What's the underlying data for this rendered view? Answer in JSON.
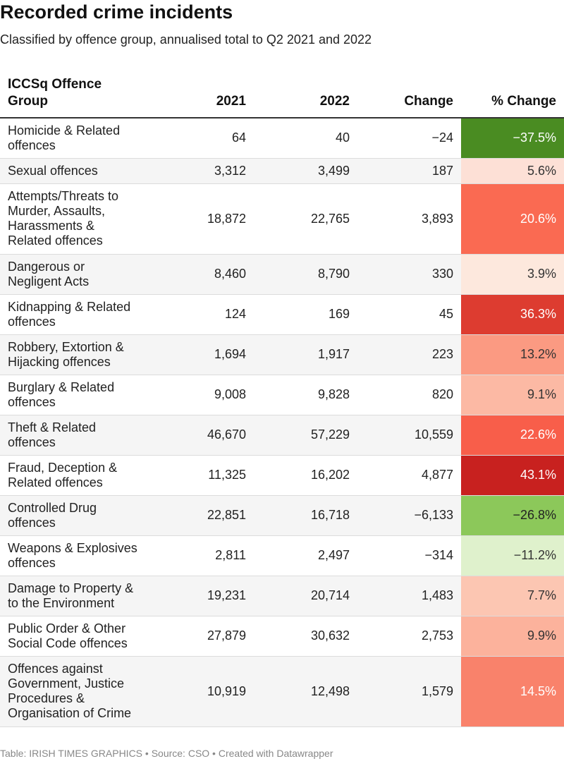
{
  "chart_data": {
    "type": "table",
    "title": "Recorded crime incidents",
    "subtitle": "Classified by offence group, annualised total to Q2 2021 and 2022",
    "columns": [
      "ICCSq Offence Group",
      "2021",
      "2022",
      "Change",
      "% Change"
    ],
    "rows": [
      {
        "group": "Homicide & Related offences",
        "y2021": "64",
        "y2022": "40",
        "change": "−24",
        "pct": "−37.5%",
        "pct_value": -37.5,
        "color": "#4a8c22",
        "text_color": "#ffffff",
        "row_height": 57
      },
      {
        "group": "Sexual offences",
        "y2021": "3,312",
        "y2022": "3,499",
        "change": "187",
        "pct": "5.6%",
        "pct_value": 5.6,
        "color": "#fde0d6",
        "text_color": "#333333",
        "row_height": 36
      },
      {
        "group": "Attempts/Threats to Murder, Assaults, Harassments & Related offences",
        "y2021": "18,872",
        "y2022": "22,765",
        "change": "3,893",
        "pct": "20.6%",
        "pct_value": 20.6,
        "color": "#fa6a52",
        "text_color": "#ffffff",
        "row_height": 100
      },
      {
        "group": "Dangerous or Negligent Acts",
        "y2021": "8,460",
        "y2022": "8,790",
        "change": "330",
        "pct": "3.9%",
        "pct_value": 3.9,
        "color": "#fde8dd",
        "text_color": "#333333",
        "row_height": 57
      },
      {
        "group": "Kidnapping & Related offences",
        "y2021": "124",
        "y2022": "169",
        "change": "45",
        "pct": "36.3%",
        "pct_value": 36.3,
        "color": "#dd3c30",
        "text_color": "#ffffff",
        "row_height": 57
      },
      {
        "group": "Robbery, Extortion & Hijacking offences",
        "y2021": "1,694",
        "y2022": "1,917",
        "change": "223",
        "pct": "13.2%",
        "pct_value": 13.2,
        "color": "#fb9a82",
        "text_color": "#333333",
        "row_height": 57
      },
      {
        "group": "Burglary & Related offences",
        "y2021": "9,008",
        "y2022": "9,828",
        "change": "820",
        "pct": "9.1%",
        "pct_value": 9.1,
        "color": "#fcb9a4",
        "text_color": "#333333",
        "row_height": 57
      },
      {
        "group": "Theft & Related offences",
        "y2021": "46,670",
        "y2022": "57,229",
        "change": "10,559",
        "pct": "22.6%",
        "pct_value": 22.6,
        "color": "#f85e4a",
        "text_color": "#ffffff",
        "row_height": 57
      },
      {
        "group": "Fraud, Deception & Related offences",
        "y2021": "11,325",
        "y2022": "16,202",
        "change": "4,877",
        "pct": "43.1%",
        "pct_value": 43.1,
        "color": "#c8211f",
        "text_color": "#ffffff",
        "row_height": 57
      },
      {
        "group": "Controlled Drug offences",
        "y2021": "22,851",
        "y2022": "16,718",
        "change": "−6,133",
        "pct": "−26.8%",
        "pct_value": -26.8,
        "color": "#8cc85a",
        "text_color": "#222222",
        "row_height": 57
      },
      {
        "group": "Weapons & Explosives offences",
        "y2021": "2,811",
        "y2022": "2,497",
        "change": "−314",
        "pct": "−11.2%",
        "pct_value": -11.2,
        "color": "#dff1cc",
        "text_color": "#333333",
        "row_height": 57
      },
      {
        "group": "Damage to Property & to the Environment",
        "y2021": "19,231",
        "y2022": "20,714",
        "change": "1,483",
        "pct": "7.7%",
        "pct_value": 7.7,
        "color": "#fcc6b2",
        "text_color": "#333333",
        "row_height": 57
      },
      {
        "group": "Public Order & Other Social Code offences",
        "y2021": "27,879",
        "y2022": "30,632",
        "change": "2,753",
        "pct": "9.9%",
        "pct_value": 9.9,
        "color": "#fcb29c",
        "text_color": "#333333",
        "row_height": 57
      },
      {
        "group": "Offences against Government, Justice Procedures & Organisation of Crime",
        "y2021": "10,919",
        "y2022": "12,498",
        "change": "1,579",
        "pct": "14.5%",
        "pct_value": 14.5,
        "color": "#f9826b",
        "text_color": "#ffffff",
        "row_height": 100
      }
    ],
    "footer": "Table: IRISH TIMES GRAPHICS • Source: CSO • Created with Datawrapper"
  }
}
